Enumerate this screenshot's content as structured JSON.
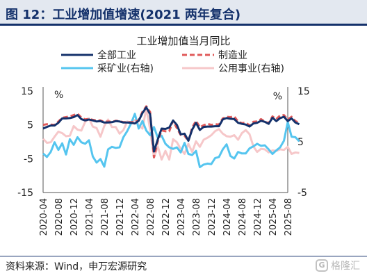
{
  "figure_title": "图 12：工业增加值增速(2021 两年复合)",
  "source": "资料来源：Wind，申万宏源研究",
  "watermark": {
    "text": "格隆汇",
    "logo_glyph": "G"
  },
  "chart_data": {
    "type": "line",
    "title": "工业增加值当月同比",
    "y_unit_left": "%",
    "y_unit_right": "%",
    "ylim_left": [
      -15,
      15
    ],
    "yticks_left": [
      15,
      5,
      -5,
      -15
    ],
    "ylim_right": [
      -5,
      15
    ],
    "yticks_right": [
      15,
      5,
      -5
    ],
    "legend_placement": "top",
    "grid": false,
    "x_start": "2020-04",
    "x_end": "2025-08",
    "tick_labels": [
      "2020-04",
      "2020-08",
      "2020-12",
      "2021-04",
      "2021-08",
      "2021-12",
      "2022-04",
      "2022-08",
      "2022-12",
      "2023-04",
      "2023-08",
      "2023-12",
      "2024-04",
      "2024-08",
      "2024-12",
      "2025-04",
      "2025-08"
    ],
    "series": [
      {
        "name": "全部工业",
        "axis": "left",
        "color": "#14316b",
        "dash": false,
        "width": 3,
        "values": [
          3.9,
          4.4,
          4.8,
          4.8,
          5.6,
          6.9,
          6.9,
          7.0,
          7.3,
          7.9,
          6.7,
          6.3,
          6.6,
          6.3,
          6.0,
          6.1,
          5.7,
          5.7,
          5.8,
          6.1,
          6.0,
          5.7,
          5.7,
          5.6,
          5.4,
          6.2,
          8.5,
          10.2,
          8.1,
          -2.9,
          0.7,
          3.9,
          3.8,
          4.2,
          6.3,
          5.0,
          2.2,
          2.4,
          0.3,
          3.6,
          5.6,
          3.5,
          4.4,
          4.5,
          4.5,
          4.6,
          4.6,
          6.6,
          7.0,
          6.8,
          6.7,
          5.6,
          5.3,
          5.1,
          4.5,
          5.4,
          5.6,
          6.2,
          5.9,
          5.3,
          7.1,
          6.1,
          7.0,
          7.4,
          6.1,
          6.9,
          5.7,
          5.2
        ]
      },
      {
        "name": "制造业",
        "axis": "left",
        "color": "#e05a5a",
        "dash": true,
        "width": 3,
        "values": [
          5.0,
          5.2,
          5.1,
          5.0,
          6.0,
          7.1,
          7.3,
          7.5,
          7.9,
          8.3,
          7.2,
          6.6,
          6.8,
          6.5,
          6.3,
          6.3,
          5.9,
          6.0,
          5.9,
          6.2,
          6.1,
          5.8,
          5.8,
          5.8,
          5.9,
          6.4,
          8.9,
          10.5,
          8.8,
          -4.6,
          0.1,
          3.4,
          3.1,
          3.1,
          6.2,
          4.0,
          2.0,
          1.8,
          0.2,
          4.2,
          6.2,
          4.3,
          4.9,
          5.3,
          5.0,
          5.2,
          5.1,
          6.9,
          7.4,
          7.3,
          7.5,
          6.0,
          5.5,
          5.7,
          4.8,
          5.9,
          6.0,
          6.7,
          6.0,
          5.5,
          7.5,
          6.7,
          7.8,
          7.9,
          6.6,
          7.4,
          6.1,
          5.6
        ]
      },
      {
        "name": "采矿业(右轴)",
        "axis": "right",
        "color": "#55c5ef",
        "dash": false,
        "width": 3,
        "values": [
          2.7,
          2.0,
          3.0,
          4.9,
          3.4,
          4.7,
          2.5,
          5.5,
          4.4,
          5.9,
          4.9,
          4.6,
          5.3,
          2.1,
          0.9,
          1.6,
          0.1,
          3.5,
          4.0,
          3.8,
          3.9,
          5.9,
          7.1,
          8.6,
          10.5,
          7.6,
          9.1,
          7.2,
          6.3,
          7.9,
          5.8,
          6.2,
          4.6,
          3.9,
          3.6,
          3.9,
          2.9,
          4.8,
          2.6,
          2.4,
          3.2,
          0.0,
          0.5,
          0.7,
          0.6,
          1.8,
          2.0,
          3.5,
          4.5,
          2.2,
          1.7,
          3.0,
          2.7,
          2.7,
          3.7,
          4.1,
          4.6,
          4.2,
          4.3,
          3.5,
          2.6,
          3.3,
          3.9,
          5.2,
          8.9,
          6.0,
          5.9,
          5.1
        ]
      },
      {
        "name": "公用事业(右轴)",
        "axis": "right",
        "color": "#f6c7c9",
        "dash": false,
        "width": 3,
        "values": [
          5.6,
          4.8,
          4.9,
          6.0,
          7.0,
          6.7,
          6.1,
          6.2,
          8.1,
          7.4,
          7.2,
          8.9,
          9.6,
          8.0,
          7.7,
          6.0,
          8.1,
          9.4,
          7.9,
          7.9,
          6.6,
          7.3,
          9.0,
          8.8,
          9.3,
          8.3,
          7.6,
          11.6,
          7.4,
          1.9,
          4.1,
          1.5,
          3.2,
          1.5,
          5.5,
          4.9,
          3.6,
          2.6,
          4.6,
          3.0,
          5.1,
          4.0,
          5.4,
          5.8,
          6.3,
          7.1,
          7.5,
          6.6,
          6.1,
          6.0,
          6.3,
          5.4,
          6.7,
          7.3,
          6.5,
          4.1,
          3.0,
          3.6,
          3.5,
          2.9,
          3.3,
          3.2,
          3.5,
          3.4,
          4.0,
          2.6,
          2.9,
          2.8
        ]
      }
    ]
  }
}
